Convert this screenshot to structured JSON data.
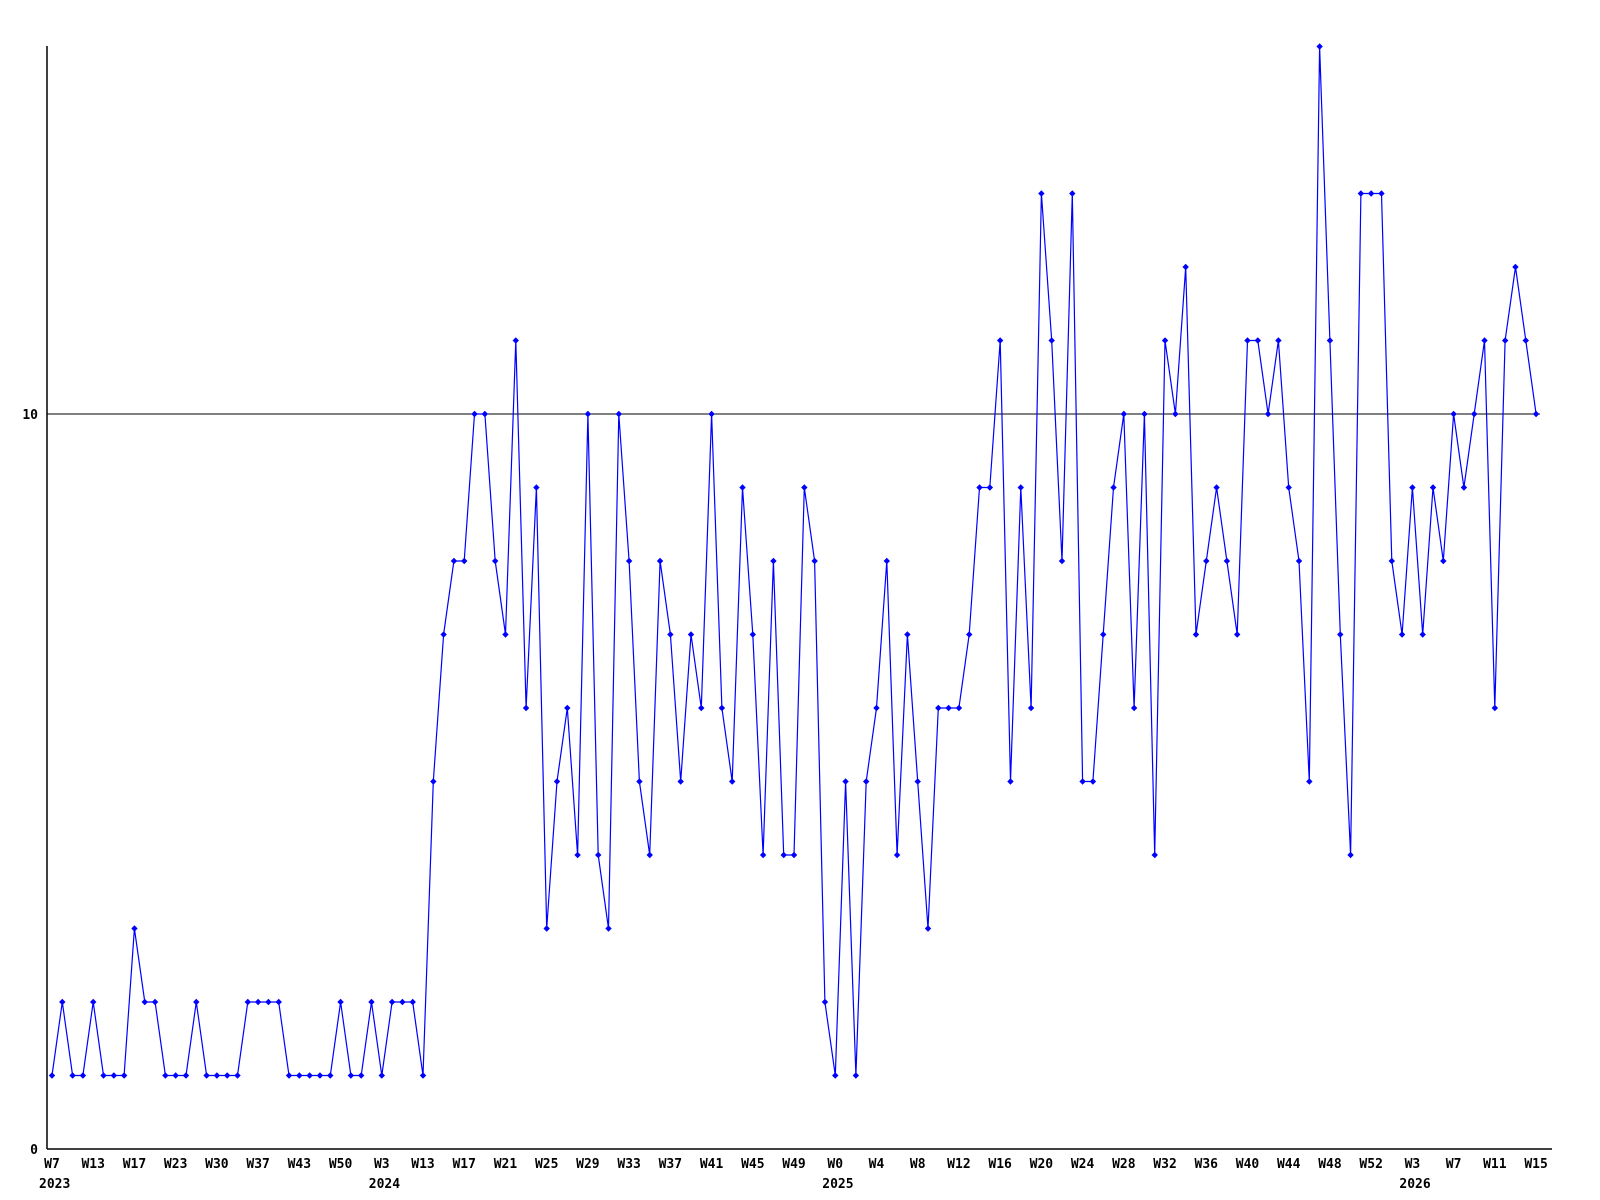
{
  "chart_data": {
    "type": "line",
    "title": "",
    "xlabel": "",
    "ylabel": "",
    "legend": "none",
    "grid": "off",
    "background_color": "#ffffff",
    "line_color": "#0000ff",
    "axis_color": "#000000",
    "marker_shape": "diamond",
    "ylim": [
      0,
      15.2
    ],
    "y_axis": {
      "labels": [
        {
          "text": "10",
          "value": 10
        },
        {
          "text": "0",
          "value": 0
        }
      ],
      "reference_line_value": 10
    },
    "x_axis": {
      "tick_every_n_points": 4,
      "tick_labels": [
        "W7",
        "W13",
        "W17",
        "W23",
        "W30",
        "W37",
        "W43",
        "W50",
        "W3",
        "W13",
        "W17",
        "W21",
        "W25",
        "W29",
        "W33",
        "W37",
        "W41",
        "W45",
        "W49",
        "W0",
        "W4",
        "W8",
        "W12",
        "W16",
        "W20",
        "W24",
        "W28",
        "W32",
        "W36",
        "W40",
        "W44",
        "W48",
        "W52",
        "W3",
        "W7",
        "W11",
        "W15"
      ],
      "year_labels": [
        {
          "text": "2023",
          "tick_index": 0
        },
        {
          "text": "2024",
          "tick_index": 8
        },
        {
          "text": "2025",
          "tick_index": 19
        },
        {
          "text": "2026",
          "tick_index": 33
        }
      ]
    },
    "values": [
      1,
      2,
      1,
      1,
      2,
      1,
      1,
      1,
      3,
      2,
      2,
      1,
      1,
      1,
      2,
      1,
      1,
      1,
      1,
      2,
      2,
      2,
      2,
      1,
      1,
      1,
      1,
      1,
      2,
      1,
      1,
      2,
      1,
      2,
      2,
      2,
      1,
      5,
      7,
      8,
      8,
      10,
      10,
      8,
      7,
      11,
      6,
      9,
      3,
      5,
      6,
      4,
      10,
      4,
      3,
      10,
      8,
      5,
      4,
      8,
      7,
      5,
      7,
      6,
      10,
      6,
      5,
      9,
      7,
      4,
      8,
      4,
      4,
      9,
      8,
      2,
      1,
      5,
      1,
      5,
      6,
      8,
      4,
      7,
      5,
      3,
      6,
      6,
      6,
      7,
      9,
      9,
      11,
      5,
      9,
      6,
      13,
      11,
      8,
      13,
      5,
      5,
      7,
      9,
      10,
      6,
      10,
      4,
      11,
      10,
      12,
      7,
      8,
      9,
      8,
      7,
      11,
      11,
      10,
      11,
      9,
      8,
      5,
      15,
      11,
      7,
      4,
      13,
      13,
      13,
      8,
      7,
      9,
      7,
      9,
      8,
      10,
      9,
      10,
      11,
      6,
      11,
      12,
      11,
      10
    ]
  }
}
